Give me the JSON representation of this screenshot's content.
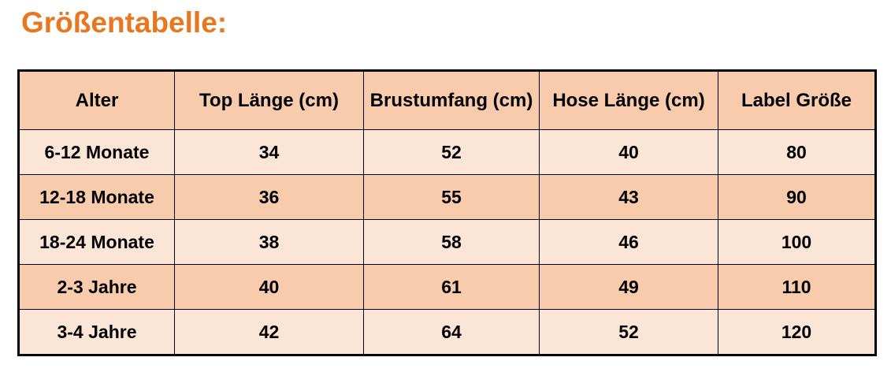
{
  "title": "Größentabelle:",
  "colors": {
    "title_text": "#E8771F",
    "header_bg": "#F8CBAD",
    "row_light_bg": "#FBE5D6",
    "row_dark_bg": "#F8CBAD",
    "border": "#000000",
    "cell_text": "#000000"
  },
  "table": {
    "headers": [
      "Alter",
      "Top Länge (cm)",
      "Brustumfang (cm)",
      "Hose Länge (cm)",
      "Label Größe"
    ],
    "rows": [
      [
        "6-12 Monate",
        "34",
        "52",
        "40",
        "80"
      ],
      [
        "12-18 Monate",
        "36",
        "55",
        "43",
        "90"
      ],
      [
        "18-24 Monate",
        "38",
        "58",
        "46",
        "100"
      ],
      [
        "2-3 Jahre",
        "40",
        "61",
        "49",
        "110"
      ],
      [
        "3-4 Jahre",
        "42",
        "64",
        "52",
        "120"
      ]
    ]
  }
}
